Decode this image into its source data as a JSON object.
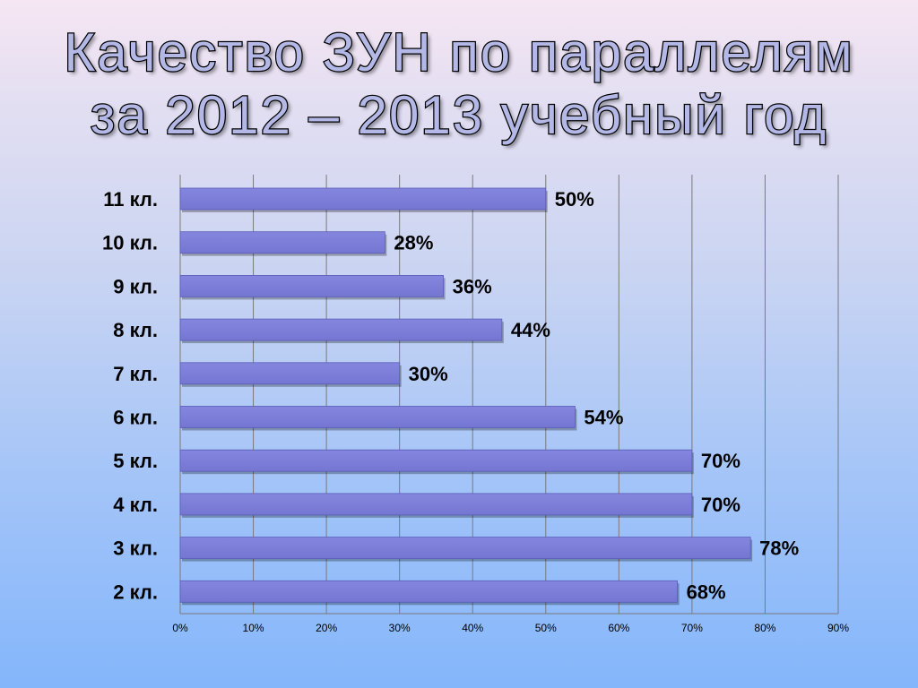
{
  "title": {
    "line1": "Качество ЗУН по параллелям",
    "line2": "за 2012 – 2013 учебный год"
  },
  "chart_data": {
    "type": "bar",
    "orientation": "horizontal",
    "title": "Качество ЗУН по параллелям за 2012 – 2013 учебный год",
    "categories": [
      "11 кл.",
      "10 кл.",
      "9 кл.",
      "8 кл.",
      "7 кл.",
      "6 кл.",
      "5 кл.",
      "4 кл.",
      "3 кл.",
      "2 кл."
    ],
    "values": [
      50,
      28,
      36,
      44,
      30,
      54,
      70,
      70,
      78,
      68
    ],
    "value_labels": [
      "50%",
      "28%",
      "36%",
      "44%",
      "30%",
      "54%",
      "70%",
      "70%",
      "78%",
      "68%"
    ],
    "xlim": [
      0,
      90
    ],
    "x_ticks": [
      0,
      10,
      20,
      30,
      40,
      50,
      60,
      70,
      80,
      90
    ],
    "x_tick_labels": [
      "0%",
      "10%",
      "20%",
      "30%",
      "40%",
      "50%",
      "60%",
      "70%",
      "80%",
      "90%"
    ],
    "xlabel": "",
    "ylabel": "",
    "grid": true,
    "legend": "none",
    "colors": {
      "bar": "#7476d2",
      "bar_edge": "#5a5cb8",
      "grid": "#7a7a7a"
    }
  }
}
